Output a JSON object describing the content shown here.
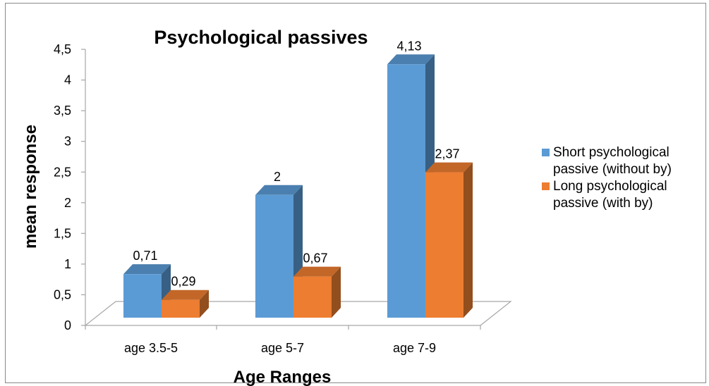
{
  "chart_data": {
    "type": "bar",
    "title": "Psychological passives",
    "xlabel": "Age Ranges",
    "ylabel": "mean response",
    "categories": [
      "age 3.5-5",
      "age 5-7",
      "age 7-9"
    ],
    "series": [
      {
        "name": "Short psychological passive (without by)",
        "legend_lines": [
          "Short psychological",
          "passive (without by)"
        ],
        "values": [
          0.71,
          2,
          4.13
        ],
        "value_labels": [
          "0,71",
          "2",
          "4,13"
        ],
        "color": "#5b9bd5"
      },
      {
        "name": "Long psychological passive (with by)",
        "legend_lines": [
          "Long psychological",
          "passive (with by)"
        ],
        "values": [
          0.29,
          0.67,
          2.37
        ],
        "value_labels": [
          "0,29",
          "0,67",
          "2,37"
        ],
        "color": "#ed7d31"
      }
    ],
    "ylim": [
      0,
      4.5
    ],
    "yticks": [
      "0",
      "0,5",
      "1",
      "1,5",
      "2",
      "2,5",
      "3",
      "3,5",
      "4",
      "4,5"
    ],
    "grid": false,
    "legend_position": "right",
    "style_3d": true
  }
}
